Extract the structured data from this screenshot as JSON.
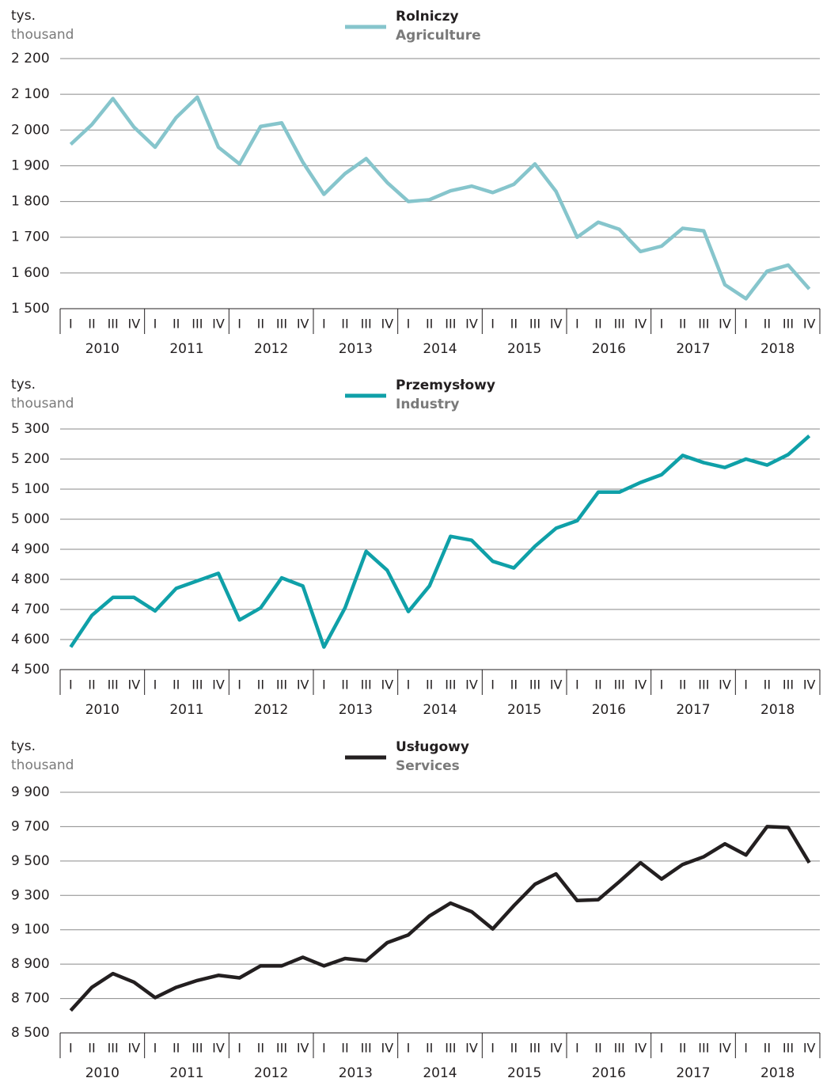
{
  "chart_data": [
    {
      "type": "line",
      "ylabel": "tys.",
      "ylabel_en": "thousand",
      "categories": [
        "I",
        "II",
        "III",
        "IV",
        "I",
        "II",
        "III",
        "IV",
        "I",
        "II",
        "III",
        "IV",
        "I",
        "II",
        "III",
        "IV",
        "I",
        "II",
        "III",
        "IV",
        "I",
        "II",
        "III",
        "IV",
        "I",
        "II",
        "III",
        "IV",
        "I",
        "II",
        "III",
        "IV",
        "I",
        "II",
        "III",
        "IV"
      ],
      "groups": [
        "2010",
        "2011",
        "2012",
        "2013",
        "2014",
        "2015",
        "2016",
        "2017",
        "2018"
      ],
      "series": [
        {
          "name": "Rolniczy",
          "name_en": "Agriculture",
          "color": "#86c5cc",
          "values": [
            1960,
            2015,
            2088,
            2008,
            1952,
            2035,
            2092,
            1952,
            1905,
            2010,
            2020,
            1910,
            1820,
            1878,
            1920,
            1853,
            1800,
            1805,
            1830,
            1843,
            1825,
            1848,
            1905,
            1828,
            1700,
            1742,
            1722,
            1660,
            1675,
            1725,
            1718,
            1567,
            1528,
            1605,
            1622,
            1555
          ]
        }
      ],
      "ylim": [
        1500,
        2200
      ],
      "yticks": [
        {
          "value": 1500,
          "label": "1 500"
        },
        {
          "value": 1600,
          "label": "1 600"
        },
        {
          "value": 1700,
          "label": "1 700"
        },
        {
          "value": 1800,
          "label": "1 800"
        },
        {
          "value": 1900,
          "label": "1 900"
        },
        {
          "value": 2000,
          "label": "2 000"
        },
        {
          "value": 2100,
          "label": "2 100"
        },
        {
          "value": 2200,
          "label": "2 200"
        }
      ],
      "grid": true
    },
    {
      "type": "line",
      "ylabel": "tys.",
      "ylabel_en": "thousand",
      "categories": [
        "I",
        "II",
        "III",
        "IV",
        "I",
        "II",
        "III",
        "IV",
        "I",
        "II",
        "III",
        "IV",
        "I",
        "II",
        "III",
        "IV",
        "I",
        "II",
        "III",
        "IV",
        "I",
        "II",
        "III",
        "IV",
        "I",
        "II",
        "III",
        "IV",
        "I",
        "II",
        "III",
        "IV",
        "I",
        "II",
        "III",
        "IV"
      ],
      "groups": [
        "2010",
        "2011",
        "2012",
        "2013",
        "2014",
        "2015",
        "2016",
        "2017",
        "2018"
      ],
      "series": [
        {
          "name": "Przemysłowy",
          "name_en": "Industry",
          "color": "#0fa0a8",
          "values": [
            4575,
            4680,
            4740,
            4740,
            4695,
            4770,
            4795,
            4820,
            4665,
            4705,
            4805,
            4778,
            4575,
            4705,
            4893,
            4830,
            4693,
            4778,
            4943,
            4930,
            4860,
            4838,
            4910,
            4970,
            4995,
            5090,
            5090,
            5122,
            5148,
            5212,
            5188,
            5172,
            5200,
            5180,
            5215,
            5277
          ]
        }
      ],
      "ylim": [
        4500,
        5300
      ],
      "yticks": [
        {
          "value": 4500,
          "label": "4 500"
        },
        {
          "value": 4600,
          "label": "4 600"
        },
        {
          "value": 4700,
          "label": "4 700"
        },
        {
          "value": 4800,
          "label": "4 800"
        },
        {
          "value": 4900,
          "label": "4 900"
        },
        {
          "value": 5000,
          "label": "5 000"
        },
        {
          "value": 5100,
          "label": "5 100"
        },
        {
          "value": 5200,
          "label": "5 200"
        },
        {
          "value": 5300,
          "label": "5 300"
        }
      ],
      "grid": true
    },
    {
      "type": "line",
      "ylabel": "tys.",
      "ylabel_en": "thousand",
      "categories": [
        "I",
        "II",
        "III",
        "IV",
        "I",
        "II",
        "III",
        "IV",
        "I",
        "II",
        "III",
        "IV",
        "I",
        "II",
        "III",
        "IV",
        "I",
        "II",
        "III",
        "IV",
        "I",
        "II",
        "III",
        "IV",
        "I",
        "II",
        "III",
        "IV",
        "I",
        "II",
        "III",
        "IV",
        "I",
        "II",
        "III",
        "IV"
      ],
      "groups": [
        "2010",
        "2011",
        "2012",
        "2013",
        "2014",
        "2015",
        "2016",
        "2017",
        "2018"
      ],
      "series": [
        {
          "name": "Usługowy",
          "name_en": "Services",
          "color": "#231f20",
          "values": [
            8630,
            8765,
            8845,
            8795,
            8705,
            8765,
            8805,
            8835,
            8820,
            8890,
            8890,
            8940,
            8890,
            8933,
            8920,
            9025,
            9070,
            9180,
            9255,
            9205,
            9105,
            9240,
            9365,
            9425,
            9270,
            9275,
            9380,
            9490,
            9395,
            9480,
            9525,
            9600,
            9535,
            9700,
            9695,
            9490
          ]
        }
      ],
      "ylim": [
        8500,
        9900
      ],
      "yticks": [
        {
          "value": 8500,
          "label": "8 500"
        },
        {
          "value": 8700,
          "label": "8 700"
        },
        {
          "value": 8900,
          "label": "8 900"
        },
        {
          "value": 9100,
          "label": "9 100"
        },
        {
          "value": 9300,
          "label": "9 300"
        },
        {
          "value": 9500,
          "label": "9 500"
        },
        {
          "value": 9700,
          "label": "9 700"
        },
        {
          "value": 9900,
          "label": "9 900"
        }
      ],
      "grid": true
    }
  ]
}
